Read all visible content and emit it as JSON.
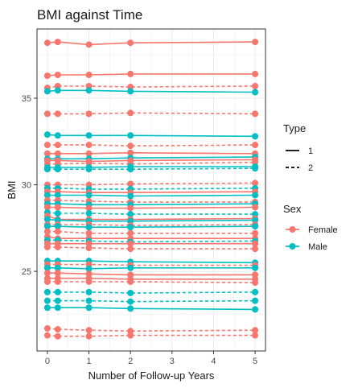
{
  "chart_data": {
    "type": "line",
    "title": "BMI against Time",
    "xlabel": "Number of Follow-up Years",
    "ylabel": "BMI",
    "xlim": [
      -0.25,
      5.25
    ],
    "ylim": [
      20.4,
      39.0
    ],
    "x_ticks": [
      0,
      1,
      2,
      3,
      4,
      5
    ],
    "y_ticks": [
      25,
      30,
      35
    ],
    "grid": true,
    "legend_position": "right",
    "colors": {
      "Female": "#F8766D",
      "Male": "#00BFC4"
    },
    "legend": {
      "type": {
        "title": "Type",
        "entries": [
          {
            "label": "1",
            "line": "solid"
          },
          {
            "label": "2",
            "line": "dashed"
          }
        ]
      },
      "sex": {
        "title": "Sex",
        "entries": [
          {
            "label": "Female"
          },
          {
            "label": "Male"
          }
        ]
      }
    },
    "x": [
      0,
      0.25,
      1,
      2,
      5
    ],
    "series": [
      {
        "sex": "Female",
        "type": "1",
        "values": [
          38.2,
          38.25,
          38.1,
          38.2,
          38.25
        ]
      },
      {
        "sex": "Female",
        "type": "1",
        "values": [
          36.3,
          36.35,
          36.35,
          36.4,
          36.4
        ]
      },
      {
        "sex": "Female",
        "type": "2",
        "values": [
          35.6,
          35.7,
          35.7,
          35.65,
          35.7
        ]
      },
      {
        "sex": "Male",
        "type": "1",
        "values": [
          35.4,
          35.45,
          35.45,
          35.4,
          35.35
        ]
      },
      {
        "sex": "Female",
        "type": "2",
        "values": [
          34.1,
          34.1,
          34.1,
          34.15,
          34.1
        ]
      },
      {
        "sex": "Male",
        "type": "1",
        "values": [
          32.9,
          32.85,
          32.85,
          32.85,
          32.8
        ]
      },
      {
        "sex": "Female",
        "type": "2",
        "values": [
          32.3,
          32.3,
          32.3,
          32.25,
          32.3
        ]
      },
      {
        "sex": "Female",
        "type": "1",
        "values": [
          31.8,
          31.8,
          31.8,
          31.85,
          31.8
        ]
      },
      {
        "sex": "Male",
        "type": "1",
        "values": [
          31.5,
          31.5,
          31.5,
          31.55,
          31.6
        ]
      },
      {
        "sex": "Female",
        "type": "1",
        "values": [
          31.4,
          31.4,
          31.35,
          31.4,
          31.45
        ]
      },
      {
        "sex": "Female",
        "type": "2",
        "values": [
          31.2,
          31.2,
          31.25,
          31.2,
          31.3
        ]
      },
      {
        "sex": "Male",
        "type": "1",
        "values": [
          31.0,
          31.0,
          31.0,
          31.05,
          31.05
        ]
      },
      {
        "sex": "Male",
        "type": "2",
        "values": [
          30.9,
          30.9,
          30.9,
          30.9,
          30.95
        ]
      },
      {
        "sex": "Female",
        "type": "2",
        "values": [
          30.0,
          30.0,
          30.0,
          30.05,
          30.1
        ]
      },
      {
        "sex": "Male",
        "type": "2",
        "values": [
          29.8,
          29.8,
          29.75,
          29.75,
          29.8
        ]
      },
      {
        "sex": "Female",
        "type": "1",
        "values": [
          29.6,
          29.6,
          29.55,
          29.55,
          29.6
        ]
      },
      {
        "sex": "Male",
        "type": "1",
        "values": [
          29.4,
          29.4,
          29.4,
          29.35,
          29.4
        ]
      },
      {
        "sex": "Female",
        "type": "2",
        "values": [
          29.1,
          29.1,
          29.05,
          29.0,
          29.0
        ]
      },
      {
        "sex": "Male",
        "type": "1",
        "values": [
          28.9,
          28.9,
          28.85,
          28.85,
          28.9
        ]
      },
      {
        "sex": "Female",
        "type": "1",
        "values": [
          28.7,
          28.7,
          28.65,
          28.65,
          28.7
        ]
      },
      {
        "sex": "Male",
        "type": "2",
        "values": [
          28.4,
          28.35,
          28.35,
          28.3,
          28.3
        ]
      },
      {
        "sex": "Female",
        "type": "1",
        "values": [
          28.2,
          28.0,
          28.0,
          28.0,
          28.05
        ]
      },
      {
        "sex": "Male",
        "type": "1",
        "values": [
          28.0,
          27.95,
          27.9,
          27.9,
          27.95
        ]
      },
      {
        "sex": "Female",
        "type": "2",
        "values": [
          27.7,
          27.7,
          27.7,
          27.65,
          27.7
        ]
      },
      {
        "sex": "Male",
        "type": "1",
        "values": [
          27.6,
          27.6,
          27.55,
          27.55,
          27.6
        ]
      },
      {
        "sex": "Female",
        "type": "2",
        "values": [
          27.3,
          27.3,
          27.2,
          27.2,
          27.2
        ]
      },
      {
        "sex": "Female",
        "type": "1",
        "values": [
          27.0,
          26.9,
          26.9,
          26.9,
          26.9
        ]
      },
      {
        "sex": "Male",
        "type": "2",
        "values": [
          26.8,
          26.8,
          26.75,
          26.7,
          26.75
        ]
      },
      {
        "sex": "Female",
        "type": "1",
        "values": [
          26.6,
          26.6,
          26.6,
          26.6,
          26.6
        ]
      },
      {
        "sex": "Female",
        "type": "2",
        "values": [
          26.4,
          26.4,
          26.35,
          26.3,
          26.3
        ]
      },
      {
        "sex": "Male",
        "type": "1",
        "values": [
          25.6,
          25.6,
          25.6,
          25.55,
          25.5
        ]
      },
      {
        "sex": "Female",
        "type": "2",
        "values": [
          25.4,
          25.4,
          25.4,
          25.35,
          25.35
        ]
      },
      {
        "sex": "Male",
        "type": "1",
        "values": [
          25.2,
          25.2,
          25.15,
          25.2,
          25.2
        ]
      },
      {
        "sex": "Female",
        "type": "1",
        "values": [
          24.9,
          24.9,
          24.85,
          24.8,
          24.8
        ]
      },
      {
        "sex": "Female",
        "type": "1",
        "values": [
          24.6,
          24.6,
          24.6,
          24.55,
          24.55
        ]
      },
      {
        "sex": "Female",
        "type": "2",
        "values": [
          24.4,
          24.4,
          24.4,
          24.4,
          24.35
        ]
      },
      {
        "sex": "Male",
        "type": "2",
        "values": [
          23.8,
          23.8,
          23.8,
          23.75,
          23.8
        ]
      },
      {
        "sex": "Male",
        "type": "2",
        "values": [
          23.3,
          23.3,
          23.3,
          23.25,
          23.3
        ]
      },
      {
        "sex": "Male",
        "type": "1",
        "values": [
          22.9,
          22.9,
          22.9,
          22.85,
          22.8
        ]
      },
      {
        "sex": "Female",
        "type": "2",
        "values": [
          21.7,
          21.65,
          21.6,
          21.55,
          21.6
        ]
      },
      {
        "sex": "Female",
        "type": "2",
        "values": [
          21.3,
          21.25,
          21.25,
          21.3,
          21.3
        ]
      }
    ]
  }
}
